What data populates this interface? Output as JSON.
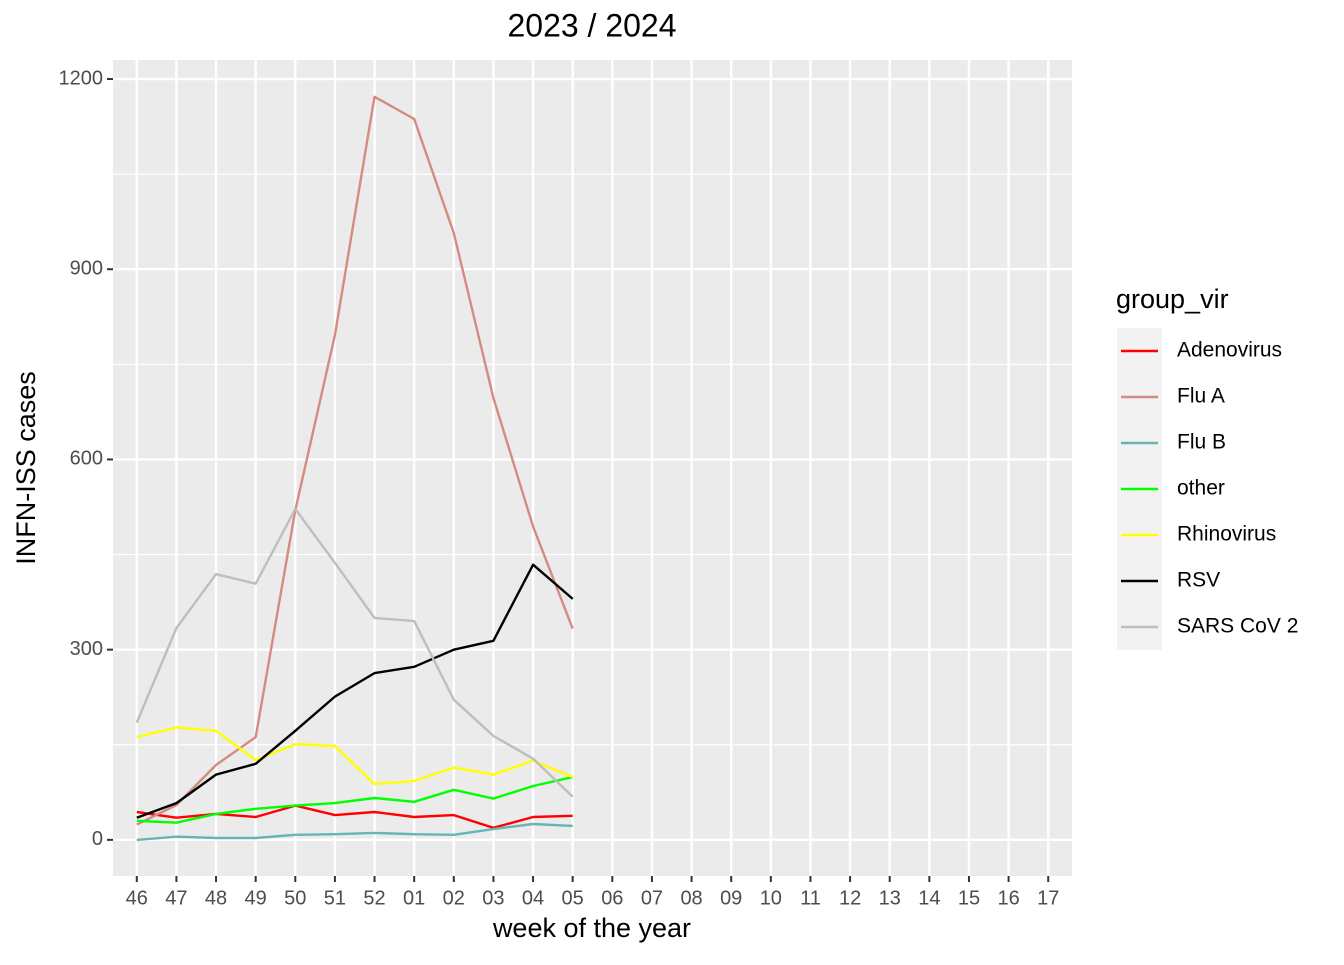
{
  "chart_data": {
    "type": "line",
    "title": "2023 / 2024",
    "x_label": "week of the year",
    "y_label": "INFN-ISS cases",
    "legend_title": "group_vir",
    "legend_position": "right",
    "categories": [
      "46",
      "47",
      "48",
      "49",
      "50",
      "51",
      "52",
      "01",
      "02",
      "03",
      "04",
      "05",
      "06",
      "07",
      "08",
      "09",
      "10",
      "11",
      "12",
      "13",
      "14",
      "15",
      "16",
      "17"
    ],
    "ylim": [
      -57,
      1230
    ],
    "yticks": [
      0,
      300,
      600,
      900,
      1200
    ],
    "yminorticks": [
      150,
      450,
      750,
      1050
    ],
    "grid": true,
    "series": [
      {
        "name": "Adenovirus",
        "color": "#ff0000",
        "values": [
          44,
          35,
          41,
          36,
          54,
          39,
          44,
          36,
          39,
          19,
          36,
          38,
          null,
          null,
          null,
          null,
          null,
          null,
          null,
          null,
          null,
          null,
          null,
          null
        ]
      },
      {
        "name": "Flu A",
        "color": "#d58b82",
        "values": [
          24,
          55,
          118,
          162,
          520,
          796,
          1172,
          1137,
          957,
          697,
          494,
          333,
          null,
          null,
          null,
          null,
          null,
          null,
          null,
          null,
          null,
          null,
          null,
          null
        ]
      },
      {
        "name": "Flu B",
        "color": "#66b5b5",
        "values": [
          0,
          5,
          3,
          3,
          8,
          9,
          11,
          9,
          8,
          17,
          25,
          22,
          null,
          null,
          null,
          null,
          null,
          null,
          null,
          null,
          null,
          null,
          null,
          null
        ]
      },
      {
        "name": "other",
        "color": "#00ff00",
        "values": [
          30,
          27,
          41,
          49,
          54,
          58,
          66,
          60,
          79,
          65,
          85,
          99,
          null,
          null,
          null,
          null,
          null,
          null,
          null,
          null,
          null,
          null,
          null,
          null
        ]
      },
      {
        "name": "Rhinovirus",
        "color": "#ffff00",
        "values": [
          162,
          177,
          172,
          126,
          151,
          148,
          88,
          93,
          114,
          103,
          125,
          99,
          null,
          null,
          null,
          null,
          null,
          null,
          null,
          null,
          null,
          null,
          null,
          null
        ]
      },
      {
        "name": "RSV",
        "color": "#000000",
        "values": [
          35,
          58,
          103,
          120,
          172,
          226,
          263,
          273,
          300,
          314,
          434,
          380,
          null,
          null,
          null,
          null,
          null,
          null,
          null,
          null,
          null,
          null,
          null,
          null
        ]
      },
      {
        "name": "SARS CoV 2",
        "color": "#bebebe",
        "values": [
          185,
          334,
          419,
          404,
          522,
          437,
          350,
          345,
          221,
          164,
          128,
          68,
          null,
          null,
          null,
          null,
          null,
          null,
          null,
          null,
          null,
          null,
          null,
          null
        ]
      }
    ]
  }
}
